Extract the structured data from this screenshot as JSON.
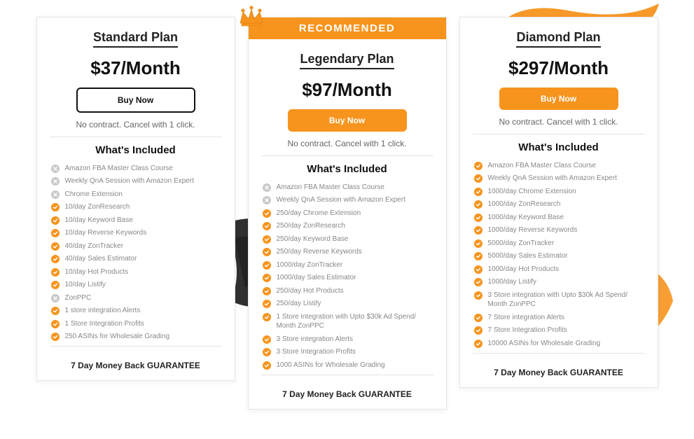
{
  "colors": {
    "accent": "#f7941d",
    "muted_icon": "#c9c9c9",
    "text_dark": "#111111",
    "text_muted": "#888888",
    "card_border": "#e5e5e5",
    "brush_black": "#1a1a1a"
  },
  "common": {
    "cancel_note": "No contract. Cancel with 1 click.",
    "included_heading": "What's Included",
    "guarantee": "7 Day Money Back GUARANTEE",
    "buy_label": "Buy Now",
    "recommended_label": "RECOMMENDED"
  },
  "plans": [
    {
      "name": "Standard Plan",
      "price": "$37/Month",
      "button_style": "outline",
      "recommended": false,
      "features": [
        {
          "included": false,
          "text": "Amazon FBA Master Class Course"
        },
        {
          "included": false,
          "text": "Weekly QnA Session with Amazon Expert"
        },
        {
          "included": false,
          "text": "Chrome Extension"
        },
        {
          "included": true,
          "text": "10/day ZonResearch"
        },
        {
          "included": true,
          "text": "10/day Keyword Base"
        },
        {
          "included": true,
          "text": "10/day Reverse Keywords"
        },
        {
          "included": true,
          "text": "40/day ZonTracker"
        },
        {
          "included": true,
          "text": "40/day Sales Estimator"
        },
        {
          "included": true,
          "text": "10/day Hot Products"
        },
        {
          "included": true,
          "text": "10/day Listify"
        },
        {
          "included": false,
          "text": "ZonPPC"
        },
        {
          "included": true,
          "text": "1 store integration Alerts"
        },
        {
          "included": true,
          "text": "1 Store Integration Profits"
        },
        {
          "included": true,
          "text": "250 ASINs for Wholesale Grading"
        }
      ]
    },
    {
      "name": "Legendary Plan",
      "price": "$97/Month",
      "button_style": "solid",
      "recommended": true,
      "features": [
        {
          "included": false,
          "text": "Amazon FBA Master Class Course"
        },
        {
          "included": false,
          "text": "Weekly QnA Session with Amazon Expert"
        },
        {
          "included": true,
          "text": "250/day Chrome Extension"
        },
        {
          "included": true,
          "text": "250/day ZonResearch"
        },
        {
          "included": true,
          "text": "250/day Keyword Base"
        },
        {
          "included": true,
          "text": "250/day Reverse Keywords"
        },
        {
          "included": true,
          "text": "1000/day ZonTracker"
        },
        {
          "included": true,
          "text": "1000/day Sales Estimator"
        },
        {
          "included": true,
          "text": "250/day Hot Products"
        },
        {
          "included": true,
          "text": "250/day Listify"
        },
        {
          "included": true,
          "text": "1 Store integration with Upto $30k Ad Spend/ Month ZonPPC"
        },
        {
          "included": true,
          "text": "3 Store integration Alerts"
        },
        {
          "included": true,
          "text": "3 Store Integration Profits"
        },
        {
          "included": true,
          "text": "1000 ASINs for Wholesale Grading"
        }
      ]
    },
    {
      "name": "Diamond Plan",
      "price": "$297/Month",
      "button_style": "solid",
      "recommended": false,
      "features": [
        {
          "included": true,
          "text": "Amazon FBA Master Class Course"
        },
        {
          "included": true,
          "text": "Weekly QnA Session with Amazon Expert"
        },
        {
          "included": true,
          "text": "1000/day Chrome Extension"
        },
        {
          "included": true,
          "text": "1000/day ZonResearch"
        },
        {
          "included": true,
          "text": "1000/day Keyword Base"
        },
        {
          "included": true,
          "text": "1000/day Reverse Keywords"
        },
        {
          "included": true,
          "text": "5000/day ZonTracker"
        },
        {
          "included": true,
          "text": "5000/day Sales Estimator"
        },
        {
          "included": true,
          "text": "1000/day Hot Products"
        },
        {
          "included": true,
          "text": "1000/day Listify"
        },
        {
          "included": true,
          "text": "3 Store integration with Upto $30k Ad Spend/ Month ZonPPC"
        },
        {
          "included": true,
          "text": "7 Store integration Alerts"
        },
        {
          "included": true,
          "text": "7 Store Integration Profits"
        },
        {
          "included": true,
          "text": "10000 ASINs for Wholesale Grading"
        }
      ]
    }
  ]
}
